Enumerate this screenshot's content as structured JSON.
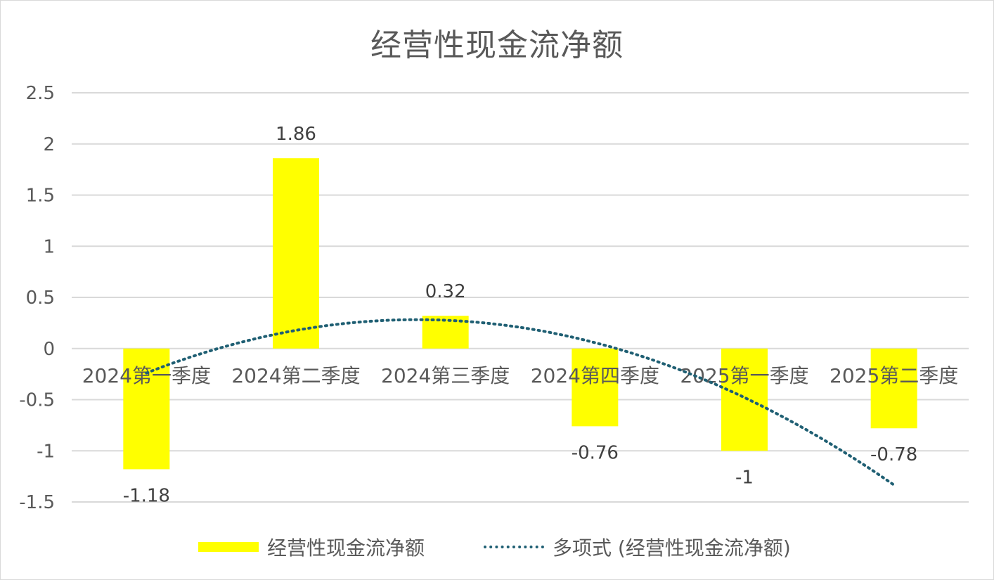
{
  "chart_data": {
    "type": "bar",
    "title": "经营性现金流净额",
    "categories": [
      "2024第一季度",
      "2024第二季度",
      "2024第三季度",
      "2024第四季度",
      "2025第一季度",
      "2025第二季度"
    ],
    "series": [
      {
        "name": "经营性现金流净额",
        "type": "bar",
        "values": [
          -1.18,
          1.86,
          0.32,
          -0.76,
          -1,
          -0.78
        ],
        "color": "#ffff00"
      }
    ],
    "trendline": {
      "name": "多项式 (经营性现金流净额)",
      "type": "polynomial",
      "style": "dotted",
      "color": "#1f5f73"
    },
    "data_labels": [
      "-1.18",
      "1.86",
      "0.32",
      "-0.76",
      "-1",
      "-0.78"
    ],
    "y_ticks": [
      "2.5",
      "2",
      "1.5",
      "1",
      "0.5",
      "0",
      "-0.5",
      "-1",
      "-1.5"
    ],
    "ylim": [
      -1.5,
      2.5
    ],
    "grid": true,
    "legend": "bottom"
  }
}
